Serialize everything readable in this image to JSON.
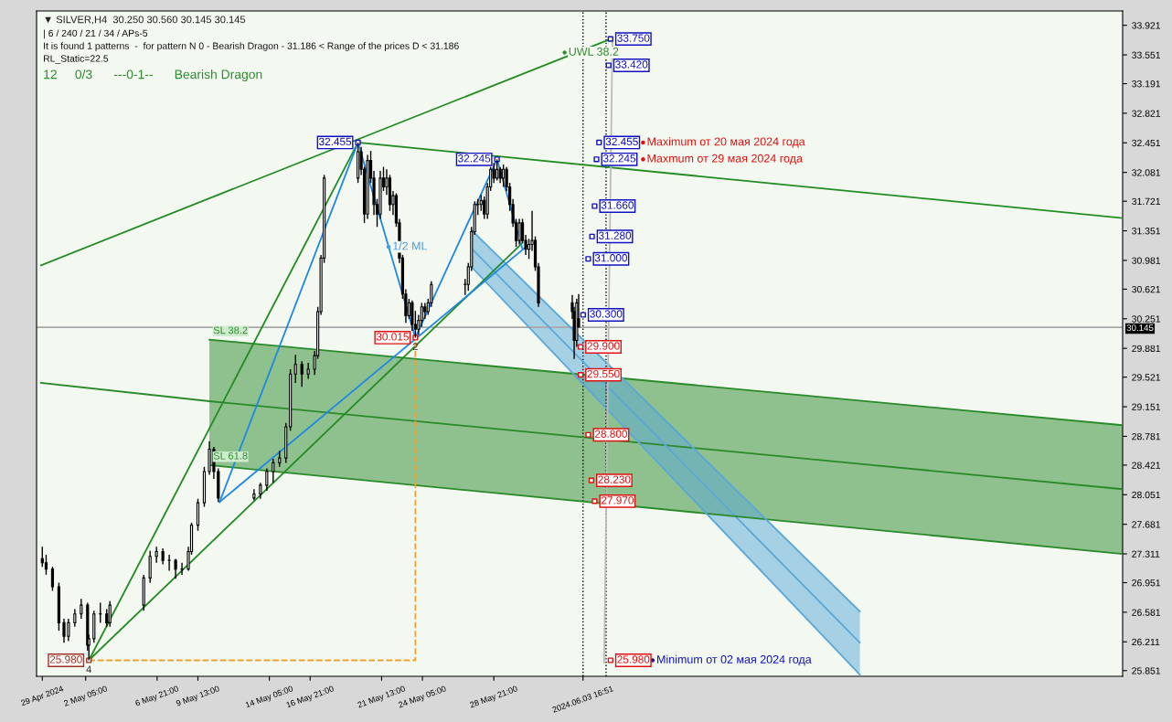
{
  "chart_data": {
    "type": "candlestick",
    "title": "▼ SILVER,H4  30.250 30.560 30.145 30.145",
    "annotations": [
      "| 6 / 240 / 21 / 34 / APs-5",
      "It is found 1 patterns  -  for pattern N 0 - Bearish Dragon - 31.186 < Range of the prices D < 31.186",
      "RL_Static=22.5",
      "12     0/3      ---0-1--      Bearish Dragon",
      {
        "text": "SL 38.2",
        "x": "2024-05-10T07:00",
        "y": 29.99
      },
      {
        "text": "SL 61.8",
        "x": "2024-05-10T07:00",
        "y": 28.42
      },
      {
        "text": "2",
        "x": "2024-05-23T18:00",
        "y": 30.015
      },
      {
        "text": "4",
        "x": "2024-05-02T10:00",
        "y": 25.98
      }
    ],
    "x": [
      "2024-04-29T09:00",
      "2024-04-29T15:00",
      "2024-04-30T01:00",
      "2024-04-30T11:00",
      "2024-04-30T19:00",
      "2024-05-01T02:00",
      "2024-05-01T12:00",
      "2024-05-01T22:00",
      "2024-05-02T08:00",
      "2024-05-02T10:00",
      "2024-05-02T18:00",
      "2024-05-03T04:00",
      "2024-05-03T14:00",
      "2024-05-03T19:00",
      "2024-05-06T00:00",
      "2024-05-06T10:00",
      "2024-05-06T20:00",
      "2024-05-07T06:00",
      "2024-05-07T16:00",
      "2024-05-08T02:00",
      "2024-05-08T12:00",
      "2024-05-08T22:00",
      "2024-05-09T03:00",
      "2024-05-09T13:00",
      "2024-05-09T23:00",
      "2024-05-10T07:00",
      "2024-05-10T14:00",
      "2024-05-10T21:00",
      "2024-05-13T05:00",
      "2024-05-13T15:00",
      "2024-05-14T01:00",
      "2024-05-14T11:00",
      "2024-05-14T21:00",
      "2024-05-15T07:00",
      "2024-05-15T14:00",
      "2024-05-15T22:00",
      "2024-05-16T08:00",
      "2024-05-16T18:00",
      "2024-05-17T04:00",
      "2024-05-17T09:00",
      "2024-05-17T14:00",
      "2024-05-17T19:00",
      "2024-05-20T00:00",
      "2024-05-20T05:00",
      "2024-05-20T10:00",
      "2024-05-20T15:00",
      "2024-05-20T20:00",
      "2024-05-21T01:00",
      "2024-05-21T06:00",
      "2024-05-21T11:00",
      "2024-05-21T16:00",
      "2024-05-21T21:00",
      "2024-05-22T02:00",
      "2024-05-22T07:00",
      "2024-05-22T12:00",
      "2024-05-22T17:00",
      "2024-05-22T22:00",
      "2024-05-23T03:00",
      "2024-05-23T08:00",
      "2024-05-23T13:00",
      "2024-05-23T18:00",
      "2024-05-23T23:00",
      "2024-05-24T04:00",
      "2024-05-24T09:00",
      "2024-05-24T14:00",
      "2024-05-24T19:00",
      "2024-05-27T00:00",
      "2024-05-27T05:00",
      "2024-05-27T10:00",
      "2024-05-27T15:00",
      "2024-05-27T20:00",
      "2024-05-28T01:00",
      "2024-05-28T06:00",
      "2024-05-28T11:00",
      "2024-05-28T16:00",
      "2024-05-28T21:00",
      "2024-05-29T02:00",
      "2024-05-29T07:00",
      "2024-05-29T12:00",
      "2024-05-29T17:00",
      "2024-05-29T22:00",
      "2024-05-30T03:00",
      "2024-05-30T08:00",
      "2024-05-30T13:00",
      "2024-05-30T18:00",
      "2024-05-30T23:00",
      "2024-05-31T04:00",
      "2024-05-31T09:00",
      "2024-05-31T14:00",
      "2024-05-31T19:00",
      "2024-06-03T00:00",
      "2024-06-03T03:00",
      "2024-06-03T07:00",
      "2024-06-03T10:00"
    ],
    "ohlc": [
      [
        27.25,
        27.4,
        27.15,
        27.2
      ],
      [
        27.2,
        27.3,
        27.05,
        27.12
      ],
      [
        27.12,
        27.15,
        26.85,
        26.9
      ],
      [
        26.9,
        26.95,
        26.35,
        26.45
      ],
      [
        26.45,
        26.5,
        26.2,
        26.28
      ],
      [
        26.28,
        26.5,
        26.22,
        26.45
      ],
      [
        26.45,
        26.62,
        26.4,
        26.56
      ],
      [
        26.56,
        26.75,
        26.5,
        26.67
      ],
      [
        26.67,
        26.7,
        26.1,
        26.17
      ],
      [
        26.17,
        26.3,
        25.98,
        26.25
      ],
      [
        26.25,
        26.6,
        26.2,
        26.56
      ],
      [
        26.56,
        26.7,
        26.45,
        26.56
      ],
      [
        26.56,
        26.62,
        26.4,
        26.45
      ],
      [
        26.45,
        26.72,
        26.4,
        26.67
      ],
      [
        26.67,
        27.05,
        26.6,
        27.01
      ],
      [
        27.01,
        27.35,
        26.95,
        27.28
      ],
      [
        27.28,
        27.4,
        27.2,
        27.34
      ],
      [
        27.34,
        27.38,
        27.18,
        27.23
      ],
      [
        27.23,
        27.3,
        27.1,
        27.23
      ],
      [
        27.23,
        27.25,
        27.0,
        27.12
      ],
      [
        27.12,
        27.2,
        27.05,
        27.12
      ],
      [
        27.12,
        27.4,
        27.1,
        27.34
      ],
      [
        27.34,
        27.7,
        27.3,
        27.67
      ],
      [
        27.67,
        28.0,
        27.6,
        27.95
      ],
      [
        27.95,
        28.4,
        27.9,
        28.34
      ],
      [
        28.34,
        28.72,
        28.3,
        28.62
      ],
      [
        28.62,
        28.65,
        28.25,
        28.34
      ],
      [
        28.34,
        28.38,
        27.96,
        28.01
      ],
      [
        28.01,
        28.12,
        27.98,
        28.06
      ],
      [
        28.06,
        28.2,
        28.0,
        28.17
      ],
      [
        28.17,
        28.38,
        28.1,
        28.34
      ],
      [
        28.34,
        28.5,
        28.2,
        28.45
      ],
      [
        28.45,
        28.6,
        28.4,
        28.51
      ],
      [
        28.51,
        28.95,
        28.45,
        28.9
      ],
      [
        28.9,
        29.62,
        28.85,
        29.56
      ],
      [
        29.56,
        29.8,
        29.45,
        29.68
      ],
      [
        29.68,
        29.72,
        29.4,
        29.56
      ],
      [
        29.56,
        29.7,
        29.5,
        29.62
      ],
      [
        29.62,
        29.85,
        29.55,
        29.79
      ],
      [
        29.79,
        30.4,
        29.75,
        30.34
      ],
      [
        30.34,
        31.05,
        30.3,
        31.01
      ],
      [
        31.01,
        32.05,
        30.95,
        32.01
      ],
      [
        32.01,
        32.455,
        31.95,
        32.34
      ],
      [
        32.34,
        32.4,
        32.05,
        32.12
      ],
      [
        32.12,
        32.15,
        31.45,
        31.56
      ],
      [
        31.56,
        32.3,
        31.5,
        32.23
      ],
      [
        32.23,
        32.35,
        31.95,
        32.01
      ],
      [
        32.01,
        32.1,
        31.55,
        31.68
      ],
      [
        31.68,
        31.75,
        31.4,
        31.56
      ],
      [
        31.56,
        32.1,
        31.5,
        32.01
      ],
      [
        32.01,
        32.15,
        31.85,
        31.9
      ],
      [
        31.9,
        32.12,
        31.8,
        32.01
      ],
      [
        32.01,
        32.05,
        31.6,
        31.68
      ],
      [
        31.68,
        31.85,
        31.55,
        31.79
      ],
      [
        31.79,
        31.82,
        31.4,
        31.45
      ],
      [
        31.45,
        31.5,
        30.95,
        31.01
      ],
      [
        31.01,
        31.05,
        30.5,
        30.56
      ],
      [
        30.56,
        30.62,
        30.2,
        30.29
      ],
      [
        30.29,
        30.5,
        30.25,
        30.45
      ],
      [
        30.45,
        30.48,
        30.1,
        30.18
      ],
      [
        30.18,
        30.35,
        30.015,
        30.12
      ],
      [
        30.12,
        30.3,
        30.05,
        30.23
      ],
      [
        30.23,
        30.45,
        30.15,
        30.4
      ],
      [
        30.4,
        30.45,
        30.25,
        30.34
      ],
      [
        30.34,
        30.5,
        30.3,
        30.45
      ],
      [
        30.45,
        30.72,
        30.4,
        30.68
      ],
      [
        30.68,
        30.75,
        30.55,
        30.68
      ],
      [
        30.68,
        30.95,
        30.6,
        30.9
      ],
      [
        30.9,
        31.4,
        30.85,
        31.34
      ],
      [
        31.34,
        31.72,
        31.3,
        31.68
      ],
      [
        31.68,
        31.75,
        31.55,
        31.68
      ],
      [
        31.68,
        31.8,
        31.6,
        31.73
      ],
      [
        31.73,
        31.78,
        31.5,
        31.56
      ],
      [
        31.56,
        31.95,
        31.5,
        31.9
      ],
      [
        31.9,
        32.15,
        31.85,
        32.12
      ],
      [
        32.12,
        32.2,
        31.95,
        32.01
      ],
      [
        32.01,
        32.245,
        31.98,
        32.12
      ],
      [
        32.12,
        32.15,
        31.95,
        32.01
      ],
      [
        32.01,
        32.18,
        31.9,
        32.12
      ],
      [
        32.12,
        32.15,
        31.85,
        31.9
      ],
      [
        31.9,
        31.95,
        31.6,
        31.68
      ],
      [
        31.68,
        31.75,
        31.4,
        31.45
      ],
      [
        31.45,
        31.5,
        31.15,
        31.23
      ],
      [
        31.23,
        31.5,
        31.18,
        31.45
      ],
      [
        31.45,
        31.5,
        31.2,
        31.23
      ],
      [
        31.23,
        31.3,
        31.05,
        31.12
      ],
      [
        31.12,
        31.25,
        31.0,
        31.18
      ],
      [
        31.18,
        31.6,
        31.1,
        31.23
      ],
      [
        31.23,
        31.28,
        30.85,
        30.9
      ],
      [
        30.9,
        30.95,
        30.4,
        30.45
      ],
      [
        30.45,
        30.55,
        30.25,
        30.34
      ],
      [
        30.34,
        30.4,
        29.75,
        29.98
      ],
      [
        29.98,
        30.5,
        29.9,
        30.45
      ],
      [
        30.25,
        30.56,
        30.145,
        30.145
      ]
    ],
    "series": [
      {
        "type": "line",
        "color": "#2a8a2a",
        "x": [
          "2024-04-29T07:00",
          "2024-05-10T07:00",
          "2024-07-08T23:00"
        ],
        "values": [
          29.45,
          29.22,
          28.12
        ],
        "lower": [
          null,
          28.42,
          27.31
        ],
        "upper": [
          null,
          29.99,
          28.92
        ],
        "line_style": "solid"
      },
      {
        "type": "line",
        "color": "#5aa8d8",
        "x": [
          "2024-05-27T10:00",
          "2024-06-21T19:00"
        ],
        "values": [
          31.13,
          26.2
        ],
        "lower": [
          30.9,
          25.8
        ],
        "upper": [
          31.36,
          26.59
        ],
        "line_style": "solid"
      },
      {
        "type": "line",
        "color": "#2a8a2a",
        "x": [
          "2024-05-10T07:00",
          "2024-07-08T23:00"
        ],
        "values": [
          28.42,
          27.31
        ],
        "line_style": "solid"
      },
      {
        "type": "line",
        "color": "#2a8a2a",
        "x": [
          "2024-05-10T07:00",
          "2024-07-08T23:00"
        ],
        "values": [
          29.99,
          28.92
        ],
        "line_style": "solid"
      },
      {
        "type": "line",
        "color": "#5aa8d8",
        "x": [
          "2024-05-27T10:00",
          "2024-06-21T19:00"
        ],
        "values": [
          30.9,
          25.8
        ],
        "line_style": "solid"
      },
      {
        "type": "line",
        "color": "#5aa8d8",
        "x": [
          "2024-05-27T10:00",
          "2024-06-21T19:00"
        ],
        "values": [
          31.36,
          26.59
        ],
        "line_style": "solid"
      },
      {
        "type": "line",
        "color": "#228b22",
        "x": [
          "2024-05-02T10:00",
          "2024-05-20T00:00"
        ],
        "values": [
          25.98,
          32.455
        ],
        "line_style": "solid"
      },
      {
        "type": "line",
        "color": "#228b22",
        "x": [
          "2024-05-02T10:00",
          "2024-05-30T18:00"
        ],
        "values": [
          25.98,
          31.2
        ],
        "line_style": "solid"
      },
      {
        "type": "line",
        "color": "#228b22",
        "x": [
          "2024-04-29T07:00",
          "2024-06-05T12:00"
        ],
        "values": [
          30.92,
          33.75
        ],
        "line_style": "solid"
      },
      {
        "type": "line",
        "color": "#228b22",
        "x": [
          "2024-05-20T00:00",
          "2024-07-08T23:00"
        ],
        "values": [
          32.455,
          31.51
        ],
        "line_style": "solid"
      },
      {
        "type": "line",
        "color": "#1e88e5",
        "x": [
          "2024-05-10T23:00",
          "2024-05-20T00:00",
          "2024-05-23T18:00",
          "2024-05-29T02:00",
          "2024-05-30T18:00"
        ],
        "values": [
          27.96,
          32.455,
          30.015,
          32.245,
          31.12
        ],
        "line_style": "solid"
      },
      {
        "type": "line",
        "color": "#1e88e5",
        "x": [
          "2024-05-10T23:00",
          "2024-05-31T04:00"
        ],
        "values": [
          27.96,
          31.18
        ],
        "line_style": "solid"
      },
      {
        "type": "line",
        "color": "#bbbbbb",
        "x": [
          "2024-06-05T02:00",
          "2024-06-05T15:00"
        ],
        "values": [
          25.95,
          33.73
        ],
        "line_style": "solid"
      },
      {
        "type": "line",
        "color": "#f0a030",
        "x": [
          "2024-05-02T10:00",
          "2024-05-23T18:00",
          "2024-05-23T18:00"
        ],
        "values": [
          25.98,
          25.98,
          30.015
        ],
        "line_style": "dashed"
      },
      {
        "type": "scatter",
        "x": [
          "2024-06-05T12:00",
          "2024-06-05T09:00",
          "2024-06-04T18:00",
          "2024-06-04T14:00",
          "2024-06-04T11:00",
          "2024-06-04T07:00",
          "2024-06-04T01:00",
          "2024-06-03T17:00",
          "2024-06-03T13:00",
          "2024-06-03T13:00",
          "2024-06-04T01:00",
          "2024-06-04T06:00",
          "2024-06-04T11:00",
          "2024-06-05T12:00"
        ],
        "values": [
          33.75,
          33.42,
          32.455,
          32.245,
          31.66,
          31.28,
          31.0,
          30.3,
          29.9,
          29.55,
          28.8,
          28.23,
          27.97,
          25.98
        ],
        "colors": [
          "#1010c0",
          "#1010c0",
          "#1010c0",
          "#1010c0",
          "#1010c0",
          "#1010c0",
          "#1010c0",
          "#1010c0",
          "#e01010",
          "#e01010",
          "#e01010",
          "#e01010",
          "#e01010",
          "#e01010"
        ],
        "value_labels": [
          "33.750",
          "33.420",
          "32.455",
          "32.245",
          "31.660",
          "31.280",
          "31.000",
          "30.300",
          "29.900",
          "29.550",
          "28.800",
          "28.230",
          "27.970",
          "25.980"
        ]
      },
      {
        "type": "scatter",
        "x": [
          "2024-05-20T00:00",
          "2024-05-29T02:00",
          "2024-05-23T18:00",
          "2024-05-02T10:00"
        ],
        "values": [
          32.455,
          32.245,
          30.015,
          25.98
        ],
        "colors": [
          "#1010c0",
          "#1010c0",
          "#e01010",
          "#a03020"
        ],
        "value_labels": [
          "32.455",
          "32.245",
          "30.015",
          "25.980"
        ]
      },
      {
        "type": "scatter",
        "marker": "dot",
        "x": [
          "2024-06-07T15:00",
          "2024-06-07T15:00",
          "2024-06-08T06:00",
          "2024-05-22T00:00",
          "2024-06-02T12:00"
        ],
        "values": [
          32.455,
          32.245,
          25.98,
          31.15,
          33.58
        ],
        "colors": [
          "#e01010",
          "#e01010",
          "#1010c0",
          "#4a9ae0",
          "#2e8b2e"
        ],
        "value_labels": [
          "Maximum от 20 мая 2024 года",
          "Maxmum от 29 мая 2024 года",
          "Minimum от 02 мая 2024 года",
          "1/2 ML",
          "UWL 38.2"
        ]
      }
    ],
    "ref_lines": [
      {
        "axis": "y",
        "value": 30.145,
        "label": "30.145",
        "color": "#a8a8a8",
        "line_style": "solid"
      },
      {
        "axis": "x",
        "value": "2024-06-03T16:51",
        "color": "#000000",
        "line_style": "dotted"
      },
      {
        "axis": "x",
        "value": "2024-06-05T05:00",
        "color": "#000000",
        "line_style": "dotted"
      }
    ],
    "xlim": [
      "2024-04-29T00:00",
      "2024-07-08T23:00"
    ],
    "xticks": [
      {
        "value": "2024-04-29T09:00",
        "label": "29 Apr 2024"
      },
      {
        "value": "2024-05-02T05:00",
        "label": "2 May 05:00"
      },
      {
        "value": "2024-05-06T21:00",
        "label": "6 May 21:00"
      },
      {
        "value": "2024-05-09T13:00",
        "label": "9 May 13:00"
      },
      {
        "value": "2024-05-14T05:00",
        "label": "14 May 05:00"
      },
      {
        "value": "2024-05-16T21:00",
        "label": "16 May 21:00"
      },
      {
        "value": "2024-05-21T13:00",
        "label": "21 May 13:00"
      },
      {
        "value": "2024-05-24T05:00",
        "label": "24 May 05:00"
      },
      {
        "value": "2024-05-28T21:00",
        "label": "28 May 21:00"
      },
      {
        "value": "2024-06-03T16:51",
        "label": "2024.06.03 16:51"
      }
    ],
    "ylim": [
      25.78,
      34.1
    ],
    "yticks": [
      25.851,
      26.211,
      26.581,
      26.951,
      27.311,
      27.681,
      28.051,
      28.421,
      28.781,
      29.151,
      29.521,
      29.881,
      30.251,
      30.621,
      30.981,
      31.351,
      31.721,
      32.081,
      32.451,
      32.821,
      33.191,
      33.551,
      33.921
    ],
    "grid": false
  }
}
